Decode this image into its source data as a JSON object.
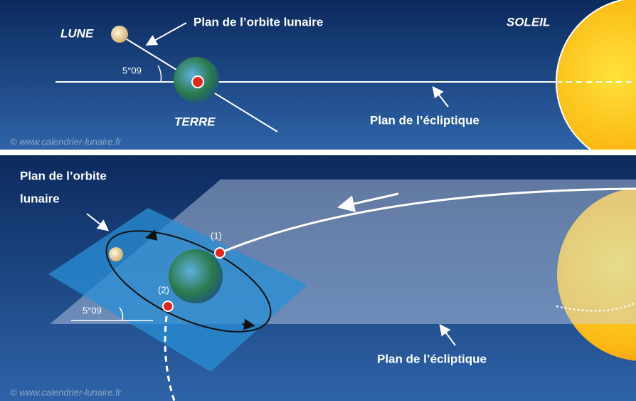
{
  "panel_top": {
    "moon_label": "LUNE",
    "orbit_plane_label": "Plan de l’orbite lunaire",
    "sun_label": "SOLEIL",
    "angle_label": "5°09",
    "earth_label": "TERRE",
    "ecliptic_label": "Plan de l’écliptique",
    "credit": "© www.calendrier-lunaire.fr"
  },
  "panel_bottom": {
    "orbit_plane_label_lines": [
      "Plan de l’orbite",
      "lunaire"
    ],
    "node_1": "(1)",
    "node_2": "(2)",
    "angle_label": "5°09",
    "ecliptic_label": "Plan de l’écliptique",
    "credit": "© www.calendrier-lunaire.fr"
  }
}
